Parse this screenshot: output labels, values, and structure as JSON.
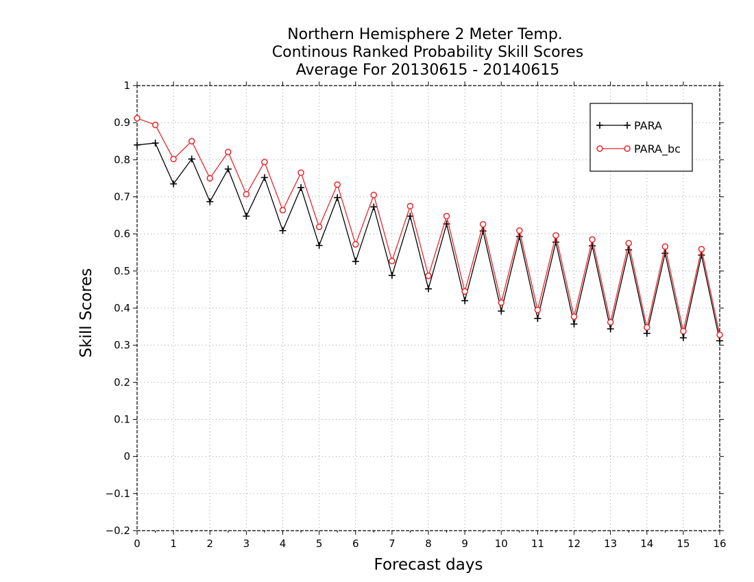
{
  "chart_data": {
    "type": "line",
    "title_lines": [
      "Northern Hemisphere 2 Meter Temp.",
      "Continous Ranked Probability Skill Scores",
      "Average For 20130615 - 20140615"
    ],
    "xlabel": "Forecast days",
    "ylabel": "Skill Scores",
    "xlim": [
      0,
      16
    ],
    "ylim": [
      -0.2,
      1
    ],
    "x_ticks": [
      "0",
      "1",
      "2",
      "3",
      "4",
      "5",
      "6",
      "7",
      "8",
      "9",
      "10",
      "11",
      "12",
      "13",
      "14",
      "15",
      "16"
    ],
    "y_ticks": [
      "−0.2",
      "−0.1",
      "0",
      "0.1",
      "0.2",
      "0.3",
      "0.4",
      "0.5",
      "0.6",
      "0.7",
      "0.8",
      "0.9",
      "1"
    ],
    "grid": true,
    "legend_position": "top-right",
    "x": [
      0,
      0.5,
      1,
      1.5,
      2,
      2.5,
      3,
      3.5,
      4,
      4.5,
      5,
      5.5,
      6,
      6.5,
      7,
      7.5,
      8,
      8.5,
      9,
      9.5,
      10,
      10.5,
      11,
      11.5,
      12,
      12.5,
      13,
      13.5,
      14,
      14.5,
      15,
      15.5,
      16
    ],
    "series": [
      {
        "name": "PARA",
        "color": "#000000",
        "marker": "plus",
        "values": [
          0.84,
          0.845,
          0.735,
          0.802,
          0.687,
          0.775,
          0.648,
          0.752,
          0.609,
          0.725,
          0.569,
          0.698,
          0.526,
          0.673,
          0.488,
          0.648,
          0.452,
          0.627,
          0.42,
          0.608,
          0.392,
          0.593,
          0.372,
          0.578,
          0.357,
          0.568,
          0.344,
          0.557,
          0.332,
          0.548,
          0.32,
          0.543,
          0.312
        ]
      },
      {
        "name": "PARA_bc",
        "color": "#e8262b",
        "marker": "circle",
        "values": [
          0.912,
          0.894,
          0.802,
          0.85,
          0.75,
          0.821,
          0.707,
          0.794,
          0.664,
          0.765,
          0.619,
          0.733,
          0.572,
          0.705,
          0.527,
          0.675,
          0.487,
          0.648,
          0.445,
          0.626,
          0.415,
          0.609,
          0.395,
          0.596,
          0.377,
          0.585,
          0.362,
          0.575,
          0.348,
          0.566,
          0.338,
          0.559,
          0.328
        ]
      }
    ]
  }
}
